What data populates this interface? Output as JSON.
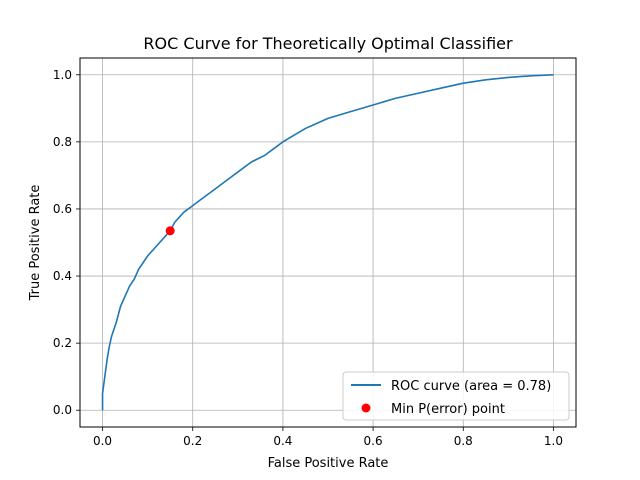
{
  "chart_data": {
    "type": "line",
    "title": "ROC Curve for Theoretically Optimal Classifier",
    "xlabel": "False Positive Rate",
    "ylabel": "True Positive Rate",
    "xlim": [
      -0.05,
      1.05
    ],
    "ylim": [
      -0.05,
      1.05
    ],
    "xticks": [
      0.0,
      0.2,
      0.4,
      0.6,
      0.8,
      1.0
    ],
    "yticks": [
      0.0,
      0.2,
      0.4,
      0.6,
      0.8,
      1.0
    ],
    "xtick_labels": [
      "0.0",
      "0.2",
      "0.4",
      "0.6",
      "0.8",
      "1.0"
    ],
    "ytick_labels": [
      "0.0",
      "0.2",
      "0.4",
      "0.6",
      "0.8",
      "1.0"
    ],
    "grid": true,
    "legend_position": "lower-right",
    "series": [
      {
        "name": "ROC curve (area = 0.78)",
        "color": "#1f77b4",
        "x": [
          0.0,
          0.0,
          0.005,
          0.01,
          0.015,
          0.02,
          0.03,
          0.04,
          0.05,
          0.06,
          0.07,
          0.08,
          0.09,
          0.1,
          0.12,
          0.14,
          0.15,
          0.16,
          0.18,
          0.2,
          0.22,
          0.25,
          0.28,
          0.3,
          0.33,
          0.36,
          0.38,
          0.4,
          0.45,
          0.5,
          0.55,
          0.6,
          0.65,
          0.7,
          0.75,
          0.8,
          0.85,
          0.9,
          0.95,
          1.0
        ],
        "y": [
          0.0,
          0.05,
          0.1,
          0.15,
          0.19,
          0.22,
          0.26,
          0.31,
          0.34,
          0.37,
          0.39,
          0.42,
          0.44,
          0.46,
          0.49,
          0.52,
          0.535,
          0.56,
          0.59,
          0.61,
          0.63,
          0.66,
          0.69,
          0.71,
          0.74,
          0.76,
          0.78,
          0.8,
          0.84,
          0.87,
          0.89,
          0.91,
          0.93,
          0.945,
          0.96,
          0.975,
          0.985,
          0.992,
          0.997,
          1.0
        ]
      }
    ],
    "markers": [
      {
        "name": "Min P(error) point",
        "color": "#ff0000",
        "x": 0.15,
        "y": 0.535
      }
    ]
  }
}
